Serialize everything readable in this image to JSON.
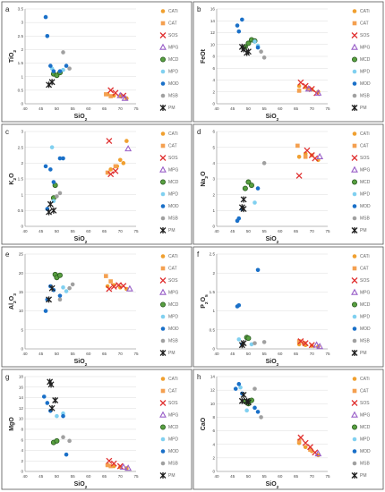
{
  "legend": [
    {
      "name": "CATi",
      "color": "#f0a030",
      "marker": "dot"
    },
    {
      "name": "CAT",
      "color": "#f4a050",
      "marker": "square"
    },
    {
      "name": "SOS",
      "color": "#e03030",
      "marker": "x"
    },
    {
      "name": "MPG",
      "color": "#9a60c8",
      "marker": "triangle"
    },
    {
      "name": "MCD",
      "color": "#58a040",
      "marker": "circle"
    },
    {
      "name": "MPD",
      "color": "#80d0f0",
      "marker": "dot"
    },
    {
      "name": "MOD",
      "color": "#1a70c8",
      "marker": "dot"
    },
    {
      "name": "MSB",
      "color": "#a0a0a0",
      "marker": "dot"
    },
    {
      "name": "PM",
      "color": "#202020",
      "marker": "star"
    }
  ],
  "chart_data": [
    {
      "type": "scatter",
      "panel": "a",
      "xlabel": "SiO2",
      "ylabel": "TiO2",
      "xlim": [
        40,
        75
      ],
      "ylim": [
        0,
        3.5
      ],
      "xticks": [
        40,
        45,
        50,
        55,
        60,
        65,
        70,
        75
      ],
      "yticks": [
        0,
        0.5,
        1,
        1.5,
        2,
        2.5,
        3,
        3.5
      ],
      "series": [
        {
          "name": "CATi",
          "x": [
            66,
            68,
            70,
            72
          ],
          "y": [
            0.35,
            0.3,
            0.28,
            0.2
          ]
        },
        {
          "name": "CAT",
          "x": [
            65.5,
            67
          ],
          "y": [
            0.35,
            0.28
          ]
        },
        {
          "name": "SOS",
          "x": [
            67,
            68.5,
            71
          ],
          "y": [
            0.5,
            0.4,
            0.3
          ]
        },
        {
          "name": "MPG",
          "x": [
            70,
            71.5
          ],
          "y": [
            0.3,
            0.2
          ]
        },
        {
          "name": "MCD",
          "x": [
            49,
            50,
            51
          ],
          "y": [
            1.1,
            1.05,
            1.15
          ]
        },
        {
          "name": "MPD",
          "x": [
            48.5,
            52
          ],
          "y": [
            1.3,
            1.25
          ]
        },
        {
          "name": "MOD",
          "x": [
            46.5,
            47,
            48,
            49,
            51,
            53
          ],
          "y": [
            3.2,
            2.5,
            1.4,
            1.2,
            1.2,
            1.4
          ]
        },
        {
          "name": "MSB",
          "x": [
            52,
            54
          ],
          "y": [
            1.9,
            1.3
          ]
        },
        {
          "name": "PM",
          "x": [
            47.5,
            48.5
          ],
          "y": [
            0.7,
            0.8
          ]
        }
      ]
    },
    {
      "type": "scatter",
      "panel": "b",
      "xlabel": "SiO2",
      "ylabel": "FeOt",
      "xlim": [
        40,
        75
      ],
      "ylim": [
        0,
        16
      ],
      "xticks": [
        40,
        45,
        50,
        55,
        60,
        65,
        70,
        75
      ],
      "yticks": [
        0,
        2,
        4,
        6,
        8,
        10,
        12,
        14,
        16
      ],
      "series": [
        {
          "name": "CATi",
          "x": [
            66,
            68,
            70,
            72
          ],
          "y": [
            3,
            2.8,
            2.4,
            2
          ]
        },
        {
          "name": "CAT",
          "x": [
            66,
            69
          ],
          "y": [
            2.2,
            2.6
          ]
        },
        {
          "name": "SOS",
          "x": [
            66.5,
            68,
            70,
            71.5
          ],
          "y": [
            3.6,
            3,
            2.5,
            1.8
          ]
        },
        {
          "name": "MPG",
          "x": [
            69,
            72
          ],
          "y": [
            2.5,
            1.8
          ]
        },
        {
          "name": "MCD",
          "x": [
            49,
            50,
            51,
            52
          ],
          "y": [
            9.6,
            10.2,
            10.8,
            10.6
          ]
        },
        {
          "name": "MPD",
          "x": [
            52,
            53
          ],
          "y": [
            10.5,
            9.8
          ]
        },
        {
          "name": "MOD",
          "x": [
            46.5,
            47,
            48,
            53
          ],
          "y": [
            13.2,
            12.2,
            14.2,
            9.5
          ]
        },
        {
          "name": "MSB",
          "x": [
            54,
            55
          ],
          "y": [
            8.8,
            7.8
          ]
        },
        {
          "name": "PM",
          "x": [
            48,
            48.5,
            49.5,
            50
          ],
          "y": [
            9.6,
            9.2,
            8.6,
            8.8
          ]
        }
      ]
    },
    {
      "type": "scatter",
      "panel": "c",
      "xlabel": "SiO2",
      "ylabel": "K2O",
      "xlim": [
        40,
        75
      ],
      "ylim": [
        0,
        3
      ],
      "xticks": [
        40,
        45,
        50,
        55,
        60,
        65,
        70,
        75
      ],
      "yticks": [
        0,
        0.5,
        1,
        1.5,
        2,
        2.5,
        3
      ],
      "series": [
        {
          "name": "CATi",
          "x": [
            67,
            69,
            70,
            71,
            72
          ],
          "y": [
            1.8,
            1.9,
            2.1,
            2.0,
            2.7
          ]
        },
        {
          "name": "CAT",
          "x": [
            66,
            68.5
          ],
          "y": [
            1.7,
            1.9
          ]
        },
        {
          "name": "SOS",
          "x": [
            66.5,
            67,
            68.5
          ],
          "y": [
            2.7,
            1.65,
            1.75
          ]
        },
        {
          "name": "MPG",
          "x": [
            72.5
          ],
          "y": [
            2.45
          ]
        },
        {
          "name": "MCD",
          "x": [
            49,
            49.5
          ],
          "y": [
            0.9,
            1.3
          ]
        },
        {
          "name": "MPD",
          "x": [
            48.5,
            49
          ],
          "y": [
            2.5,
            0.8
          ]
        },
        {
          "name": "MOD",
          "x": [
            46.5,
            47,
            48,
            49,
            51,
            52
          ],
          "y": [
            1.9,
            0.55,
            1.8,
            1.4,
            2.15,
            2.15
          ]
        },
        {
          "name": "MSB",
          "x": [
            51,
            50
          ],
          "y": [
            1.05,
            0.95
          ]
        },
        {
          "name": "PM",
          "x": [
            47.5,
            48,
            49
          ],
          "y": [
            0.45,
            0.7,
            0.5
          ]
        }
      ]
    },
    {
      "type": "scatter",
      "panel": "d",
      "xlabel": "SiO2",
      "ylabel": "Na2O",
      "xlim": [
        40,
        75
      ],
      "ylim": [
        0,
        6
      ],
      "xticks": [
        40,
        45,
        50,
        55,
        60,
        65,
        70,
        75
      ],
      "yticks": [
        0,
        1,
        2,
        3,
        4,
        5,
        6
      ],
      "series": [
        {
          "name": "CATi",
          "x": [
            66,
            68,
            70,
            72
          ],
          "y": [
            4.4,
            4.6,
            4.5,
            4.2
          ]
        },
        {
          "name": "CAT",
          "x": [
            65.5,
            68
          ],
          "y": [
            5.1,
            4.4
          ]
        },
        {
          "name": "SOS",
          "x": [
            66,
            68.5,
            70,
            71
          ],
          "y": [
            3.2,
            4.8,
            4.5,
            4.3
          ]
        },
        {
          "name": "MPG",
          "x": [
            72.5
          ],
          "y": [
            4.4
          ]
        },
        {
          "name": "MCD",
          "x": [
            49,
            50,
            51
          ],
          "y": [
            2.4,
            2.8,
            2.6
          ]
        },
        {
          "name": "MPD",
          "x": [
            52
          ],
          "y": [
            1.5
          ]
        },
        {
          "name": "MOD",
          "x": [
            46.5,
            47,
            48,
            53
          ],
          "y": [
            0.35,
            0.5,
            1.1,
            2.4
          ]
        },
        {
          "name": "MSB",
          "x": [
            55
          ],
          "y": [
            4.0
          ]
        },
        {
          "name": "PM",
          "x": [
            48.5,
            48,
            48.5
          ],
          "y": [
            1.7,
            1.2,
            1.1
          ]
        }
      ]
    },
    {
      "type": "scatter",
      "panel": "e",
      "xlabel": "SiO2",
      "ylabel": "Al2O3",
      "xlim": [
        40,
        75
      ],
      "ylim": [
        0,
        25
      ],
      "xticks": [
        40,
        45,
        50,
        55,
        60,
        65,
        70,
        75
      ],
      "yticks": [
        0,
        5,
        10,
        15,
        20,
        25
      ],
      "series": [
        {
          "name": "CATi",
          "x": [
            66,
            68,
            70,
            72
          ],
          "y": [
            16.5,
            16.8,
            16.2,
            15.8
          ]
        },
        {
          "name": "CAT",
          "x": [
            65.5,
            67
          ],
          "y": [
            19.2,
            17.8
          ]
        },
        {
          "name": "SOS",
          "x": [
            66.5,
            68,
            69.5,
            71
          ],
          "y": [
            15.8,
            16.4,
            16.8,
            16.6
          ]
        },
        {
          "name": "MPG",
          "x": [
            73
          ],
          "y": [
            15.8
          ]
        },
        {
          "name": "MCD",
          "x": [
            49.5,
            50,
            51
          ],
          "y": [
            19.6,
            18.8,
            19.4
          ]
        },
        {
          "name": "MPD",
          "x": [
            52,
            53
          ],
          "y": [
            16.2,
            15.2
          ]
        },
        {
          "name": "MOD",
          "x": [
            46.5,
            47,
            48,
            49,
            51
          ],
          "y": [
            10,
            13,
            16.5,
            15.5,
            14
          ]
        },
        {
          "name": "MSB",
          "x": [
            51,
            54,
            55
          ],
          "y": [
            13,
            16,
            17
          ]
        },
        {
          "name": "PM",
          "x": [
            47.5,
            48.5
          ],
          "y": [
            13,
            16
          ]
        }
      ]
    },
    {
      "type": "scatter",
      "panel": "f",
      "xlabel": "SiO2",
      "ylabel": "P2O5",
      "xlim": [
        40,
        75
      ],
      "ylim": [
        0,
        2.5
      ],
      "xticks": [
        40,
        45,
        50,
        55,
        60,
        65,
        70,
        75
      ],
      "yticks": [
        0,
        0.5,
        1,
        1.5,
        2,
        2.5
      ],
      "series": [
        {
          "name": "CATi",
          "x": [
            66,
            68,
            70,
            72
          ],
          "y": [
            0.12,
            0.1,
            0.08,
            0.06
          ]
        },
        {
          "name": "CAT",
          "x": [
            66,
            67.5
          ],
          "y": [
            0.2,
            0.15
          ]
        },
        {
          "name": "SOS",
          "x": [
            66.5,
            68,
            70
          ],
          "y": [
            0.2,
            0.15,
            0.1
          ]
        },
        {
          "name": "MPG",
          "x": [
            71.5,
            72.5
          ],
          "y": [
            0.1,
            0.06
          ]
        },
        {
          "name": "MCD",
          "x": [
            49.5,
            50
          ],
          "y": [
            0.3,
            0.28
          ]
        },
        {
          "name": "MPD",
          "x": [
            47,
            51
          ],
          "y": [
            0.25,
            0.12
          ]
        },
        {
          "name": "MOD",
          "x": [
            46.5,
            47,
            48,
            53
          ],
          "y": [
            1.12,
            1.15,
            0.12,
            2.08
          ]
        },
        {
          "name": "MSB",
          "x": [
            52,
            55
          ],
          "y": [
            0.15,
            0.18
          ]
        },
        {
          "name": "PM",
          "x": [
            48,
            48.5
          ],
          "y": [
            0.1,
            0.15
          ]
        }
      ]
    },
    {
      "type": "scatter",
      "panel": "g",
      "xlabel": "SiO2",
      "ylabel": "MgO",
      "xlim": [
        40,
        75
      ],
      "ylim": [
        0,
        18
      ],
      "xticks": [
        40,
        45,
        50,
        55,
        60,
        65,
        70,
        75
      ],
      "yticks": [
        0,
        2,
        4,
        6,
        8,
        10,
        12,
        14,
        16,
        18
      ],
      "series": [
        {
          "name": "CATi",
          "x": [
            66,
            68,
            70,
            72
          ],
          "y": [
            1.2,
            1.0,
            0.8,
            0.6
          ]
        },
        {
          "name": "CAT",
          "x": [
            66,
            67
          ],
          "y": [
            1.2,
            1.0
          ]
        },
        {
          "name": "SOS",
          "x": [
            66.5,
            68,
            70
          ],
          "y": [
            2.0,
            1.5,
            1.0
          ]
        },
        {
          "name": "MPG",
          "x": [
            71,
            72.5
          ],
          "y": [
            0.8,
            0.6
          ]
        },
        {
          "name": "MCD",
          "x": [
            49,
            50
          ],
          "y": [
            5.5,
            5.8
          ]
        },
        {
          "name": "MPD",
          "x": [
            50,
            52
          ],
          "y": [
            10.5,
            11
          ]
        },
        {
          "name": "MOD",
          "x": [
            46,
            47,
            48,
            52,
            53
          ],
          "y": [
            14.2,
            13,
            11.5,
            10.5,
            3.2
          ]
        },
        {
          "name": "MSB",
          "x": [
            52,
            54
          ],
          "y": [
            6.5,
            5.8
          ]
        },
        {
          "name": "PM",
          "x": [
            47.8,
            48.2,
            48.5,
            49.5
          ],
          "y": [
            17,
            16.5,
            12,
            13.5
          ]
        }
      ]
    },
    {
      "type": "scatter",
      "panel": "h",
      "xlabel": "SiO2",
      "ylabel": "CaO",
      "xlim": [
        40,
        75
      ],
      "ylim": [
        0,
        14
      ],
      "xticks": [
        40,
        45,
        50,
        55,
        60,
        65,
        70,
        75
      ],
      "yticks": [
        0,
        2,
        4,
        6,
        8,
        10,
        12,
        14
      ],
      "series": [
        {
          "name": "CATi",
          "x": [
            66,
            68,
            70,
            72
          ],
          "y": [
            4.2,
            3.6,
            3.0,
            2.4
          ]
        },
        {
          "name": "CAT",
          "x": [
            66,
            69.5
          ],
          "y": [
            4.5,
            3.2
          ]
        },
        {
          "name": "SOS",
          "x": [
            66.5,
            68,
            69.5,
            71
          ],
          "y": [
            5.0,
            4.2,
            3.6,
            2.8
          ]
        },
        {
          "name": "MPG",
          "x": [
            72
          ],
          "y": [
            2.6
          ]
        },
        {
          "name": "MCD",
          "x": [
            49,
            50,
            51
          ],
          "y": [
            10.3,
            10.0,
            10.5
          ]
        },
        {
          "name": "MPD",
          "x": [
            47.5,
            49.5
          ],
          "y": [
            12.4,
            9.0
          ]
        },
        {
          "name": "MOD",
          "x": [
            46,
            47,
            48,
            52,
            53
          ],
          "y": [
            12.2,
            12.9,
            11.5,
            9.4,
            8.8
          ]
        },
        {
          "name": "MSB",
          "x": [
            52,
            54
          ],
          "y": [
            12.2,
            8.0
          ]
        },
        {
          "name": "PM",
          "x": [
            48,
            48.5,
            49.5,
            50
          ],
          "y": [
            10.4,
            11.3,
            10.4,
            10.2
          ]
        }
      ]
    }
  ]
}
